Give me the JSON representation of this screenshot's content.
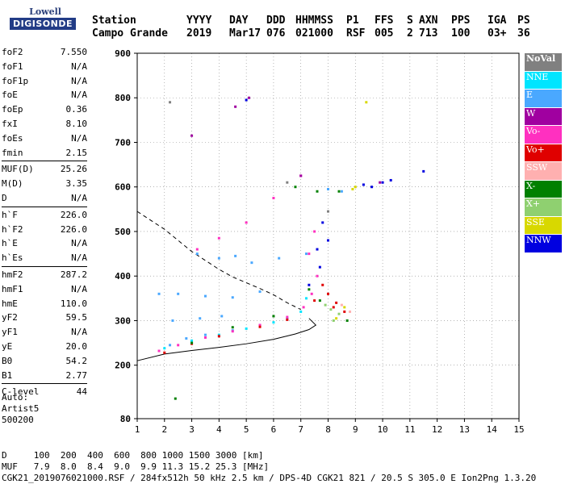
{
  "logo": {
    "line1": "Lowell",
    "line2": "DIGISONDE"
  },
  "header": {
    "row1": [
      "Station",
      "YYYY",
      "DAY",
      "DDD",
      "HHMMSS",
      "P1",
      "FFS",
      "S",
      "AXN",
      "PPS",
      "IGA",
      "PS"
    ],
    "row2": [
      "Campo Grande",
      "2019",
      "Mar17",
      "076",
      "021000",
      "RSF",
      "005",
      "2",
      "713",
      "100",
      "03+",
      "36"
    ]
  },
  "params": [
    {
      "k": "foF2",
      "v": "7.550"
    },
    {
      "k": "foF1",
      "v": "N/A"
    },
    {
      "k": "foF1p",
      "v": "N/A"
    },
    {
      "k": "foE",
      "v": "N/A"
    },
    {
      "k": "foEp",
      "v": "0.36"
    },
    {
      "k": "fxI",
      "v": "8.10"
    },
    {
      "k": "foEs",
      "v": "N/A"
    },
    {
      "k": "fmin",
      "v": "2.15"
    },
    {
      "sep": true
    },
    {
      "k": "MUF(D)",
      "v": "25.26"
    },
    {
      "k": "M(D)",
      "v": "3.35"
    },
    {
      "k": "D",
      "v": "N/A"
    },
    {
      "sep": true
    },
    {
      "k": "h`F",
      "v": "226.0"
    },
    {
      "k": "h`F2",
      "v": "226.0"
    },
    {
      "k": "h`E",
      "v": "N/A"
    },
    {
      "k": "h`Es",
      "v": "N/A"
    },
    {
      "sep": true
    },
    {
      "k": "hmF2",
      "v": "287.2"
    },
    {
      "k": "hmF1",
      "v": "N/A"
    },
    {
      "k": "hmE",
      "v": "110.0"
    },
    {
      "k": "yF2",
      "v": "59.5"
    },
    {
      "k": "yF1",
      "v": "N/A"
    },
    {
      "k": "yE",
      "v": "20.0"
    },
    {
      "k": "B0",
      "v": "54.2"
    },
    {
      "k": "B1",
      "v": "2.77"
    },
    {
      "sep": true
    },
    {
      "k": "C-level",
      "v": "44"
    }
  ],
  "auto": {
    "l1": "Auto:",
    "l2": "Artist5",
    "l3": "500200"
  },
  "footer": {
    "l1": "D     100  200  400  600  800 1000 1500 3000 [km]",
    "l2": "MUF   7.9  8.0  8.4  9.0  9.9 11.3 15.2 25.3 [MHz]",
    "l3": "CGK21_2019076021000.RSF / 284fx512h 50 kHz 2.5 km / DPS-4D CGK21 821 / 20.5 S 305.0 E Ion2Png 1.3.20"
  },
  "legend": [
    {
      "label": "NoVal",
      "color": "#808080"
    },
    {
      "label": "NNE",
      "color": "#00e5ff"
    },
    {
      "label": "E",
      "color": "#4aa8ff"
    },
    {
      "label": "W",
      "color": "#a000a0"
    },
    {
      "label": "Vo-",
      "color": "#ff30c0"
    },
    {
      "label": "Vo+",
      "color": "#e00000"
    },
    {
      "label": "SSW",
      "color": "#ffb0b0"
    },
    {
      "label": "X-",
      "color": "#008000"
    },
    {
      "label": "X+",
      "color": "#8fd070"
    },
    {
      "label": "SSE",
      "color": "#d8d800"
    },
    {
      "label": "NNW",
      "color": "#0000e0"
    }
  ],
  "chart_data": {
    "type": "scatter",
    "xlim": [
      1,
      15
    ],
    "ylim": [
      80,
      900
    ],
    "x_ticks": [
      1,
      2,
      3,
      4,
      5,
      6,
      7,
      8,
      9,
      10,
      11,
      12,
      13,
      14,
      15
    ],
    "y_ticks": [
      80,
      200,
      300,
      400,
      500,
      600,
      700,
      800,
      900
    ],
    "grid": "dotted",
    "series": [
      {
        "name": "E",
        "color": "#4aa8ff",
        "points": [
          [
            2.2,
            245
          ],
          [
            2.8,
            260
          ],
          [
            3.5,
            268
          ],
          [
            4.5,
            278
          ],
          [
            5.5,
            290
          ],
          [
            6.5,
            305
          ],
          [
            1.8,
            360
          ],
          [
            2.5,
            360
          ],
          [
            3.5,
            355
          ],
          [
            4.5,
            352
          ],
          [
            5.5,
            365
          ],
          [
            2.3,
            300
          ],
          [
            3.3,
            305
          ],
          [
            4.1,
            310
          ],
          [
            3.2,
            450
          ],
          [
            4.0,
            440
          ],
          [
            4.6,
            445
          ],
          [
            5.2,
            430
          ],
          [
            6.2,
            440
          ],
          [
            7.2,
            450
          ],
          [
            8.0,
            595
          ],
          [
            8.5,
            590
          ]
        ]
      },
      {
        "name": "NNE",
        "color": "#00e5ff",
        "points": [
          [
            2.0,
            238
          ],
          [
            3.0,
            255
          ],
          [
            4.0,
            268
          ],
          [
            5.0,
            282
          ],
          [
            6.0,
            296
          ],
          [
            7.0,
            320
          ],
          [
            7.2,
            350
          ]
        ]
      },
      {
        "name": "Vo-",
        "color": "#ff30c0",
        "points": [
          [
            1.8,
            232
          ],
          [
            2.5,
            245
          ],
          [
            3.5,
            262
          ],
          [
            4.5,
            276
          ],
          [
            5.5,
            290
          ],
          [
            6.5,
            308
          ],
          [
            7.1,
            330
          ],
          [
            7.4,
            360
          ],
          [
            7.6,
            400
          ],
          [
            3.2,
            460
          ],
          [
            4.0,
            485
          ],
          [
            5.0,
            520
          ],
          [
            6.0,
            575
          ],
          [
            7.0,
            625
          ],
          [
            7.3,
            450
          ],
          [
            7.5,
            500
          ]
        ]
      },
      {
        "name": "Vo+",
        "color": "#e00000",
        "points": [
          [
            2.0,
            228
          ],
          [
            3.0,
            248
          ],
          [
            4.0,
            265
          ],
          [
            5.5,
            286
          ],
          [
            6.5,
            302
          ],
          [
            7.5,
            345
          ],
          [
            8.0,
            360
          ],
          [
            8.3,
            340
          ],
          [
            8.6,
            320
          ],
          [
            7.8,
            380
          ],
          [
            8.2,
            330
          ]
        ]
      },
      {
        "name": "X-",
        "color": "#008000",
        "points": [
          [
            2.4,
            125
          ],
          [
            3.0,
            250
          ],
          [
            4.5,
            285
          ],
          [
            6.0,
            310
          ],
          [
            7.3,
            370
          ],
          [
            7.7,
            345
          ],
          [
            8.7,
            300
          ],
          [
            6.8,
            600
          ],
          [
            7.6,
            590
          ],
          [
            8.4,
            590
          ]
        ]
      },
      {
        "name": "X+",
        "color": "#8fd070",
        "points": [
          [
            8.1,
            325
          ],
          [
            8.4,
            315
          ],
          [
            8.2,
            300
          ],
          [
            7.9,
            335
          ]
        ]
      },
      {
        "name": "SSE",
        "color": "#d8d800",
        "points": [
          [
            8.3,
            305
          ],
          [
            8.6,
            330
          ],
          [
            8.9,
            595
          ],
          [
            9.0,
            600
          ],
          [
            9.4,
            790
          ]
        ]
      },
      {
        "name": "SSW",
        "color": "#ffb0b0",
        "points": [
          [
            8.5,
            335
          ],
          [
            8.8,
            320
          ]
        ]
      },
      {
        "name": "NNW",
        "color": "#0000e0",
        "points": [
          [
            7.3,
            380
          ],
          [
            7.6,
            460
          ],
          [
            7.8,
            520
          ],
          [
            7.7,
            420
          ],
          [
            8.0,
            480
          ],
          [
            9.3,
            605
          ],
          [
            9.6,
            600
          ],
          [
            10.0,
            610
          ],
          [
            10.3,
            615
          ],
          [
            11.5,
            635
          ],
          [
            5.0,
            795
          ]
        ]
      },
      {
        "name": "W",
        "color": "#a000a0",
        "points": [
          [
            3.0,
            715
          ],
          [
            4.6,
            780
          ],
          [
            5.1,
            800
          ],
          [
            7.0,
            625
          ],
          [
            9.9,
            610
          ]
        ]
      },
      {
        "name": "NoVal",
        "color": "#808080",
        "points": [
          [
            2.2,
            790
          ],
          [
            6.5,
            610
          ],
          [
            8.0,
            545
          ]
        ]
      }
    ],
    "profile_curve": [
      [
        1,
        210
      ],
      [
        2,
        225
      ],
      [
        3,
        233
      ],
      [
        4,
        240
      ],
      [
        5,
        248
      ],
      [
        6,
        258
      ],
      [
        6.8,
        270
      ],
      [
        7.3,
        280
      ],
      [
        7.55,
        290
      ],
      [
        7.3,
        305
      ]
    ],
    "dashed_curve": [
      [
        1,
        545
      ],
      [
        1.5,
        525
      ],
      [
        2,
        505
      ],
      [
        2.5,
        480
      ],
      [
        3,
        455
      ],
      [
        3.5,
        435
      ],
      [
        4,
        415
      ],
      [
        4.5,
        398
      ],
      [
        5,
        385
      ],
      [
        5.5,
        372
      ],
      [
        6,
        358
      ],
      [
        6.5,
        340
      ],
      [
        7,
        325
      ]
    ]
  }
}
